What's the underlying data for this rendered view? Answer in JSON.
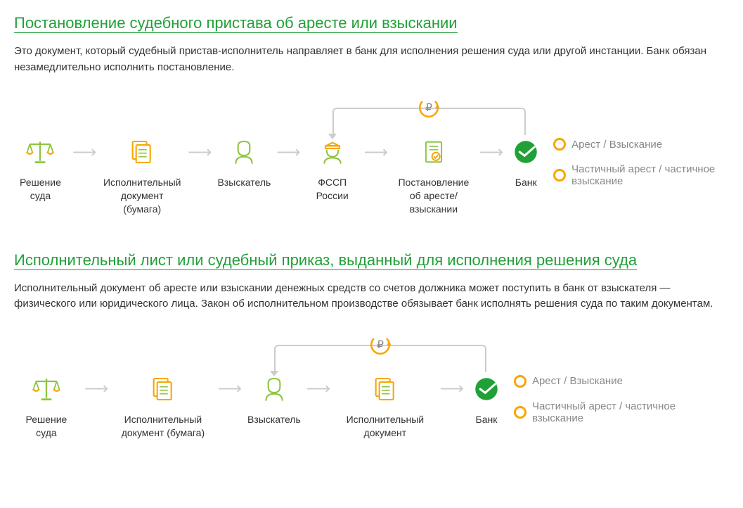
{
  "colors": {
    "brand_green": "#21a038",
    "light_green": "#8dc63f",
    "orange": "#f7a600",
    "grey_arrow": "#cccccc",
    "text": "#333333",
    "muted": "#888888"
  },
  "section1": {
    "title": "Постановление судебного пристава об аресте или взыскании",
    "description": "Это документ, который судебный пристав-исполнитель направляет в банк для исполнения решения суда или другой инстанции. Банк обязан незамедлительно исполнить постановление.",
    "steps": [
      {
        "icon": "scales",
        "label": "Решение суда"
      },
      {
        "icon": "documents",
        "label": "Исполнительный документ (бумага)"
      },
      {
        "icon": "person",
        "label": "Взыскатель"
      },
      {
        "icon": "bailiff",
        "label": "ФССП России"
      },
      {
        "icon": "check-doc",
        "label": "Постановление об аресте/взыскании"
      },
      {
        "icon": "bank",
        "label": "Банк"
      }
    ],
    "feedback": {
      "from_step_index": 3,
      "to_step_index": 5,
      "badge": "ruble"
    },
    "outcomes": [
      "Арест / Взыскание",
      "Частичный арест / частичное взыскание"
    ]
  },
  "section2": {
    "title": "Исполнительный лист или судебный приказ, выданный для исполнения решения суда",
    "description": "Исполнительный документ об аресте или взыскании денежных средств со счетов должника может поступить в банк от взыскателя — физического или юридического лица. Закон об исполнительном производстве обязывает банк исполнять решения суда по таким документам.",
    "steps": [
      {
        "icon": "scales",
        "label": "Решение суда"
      },
      {
        "icon": "documents",
        "label": "Исполнительный документ (бумага)"
      },
      {
        "icon": "person",
        "label": "Взыскатель"
      },
      {
        "icon": "documents",
        "label": "Исполнительный документ"
      },
      {
        "icon": "bank",
        "label": "Банк"
      }
    ],
    "feedback": {
      "from_step_index": 2,
      "to_step_index": 4,
      "badge": "ruble"
    },
    "outcomes": [
      "Арест / Взыскание",
      "Частичный арест / частичное взыскание"
    ]
  }
}
